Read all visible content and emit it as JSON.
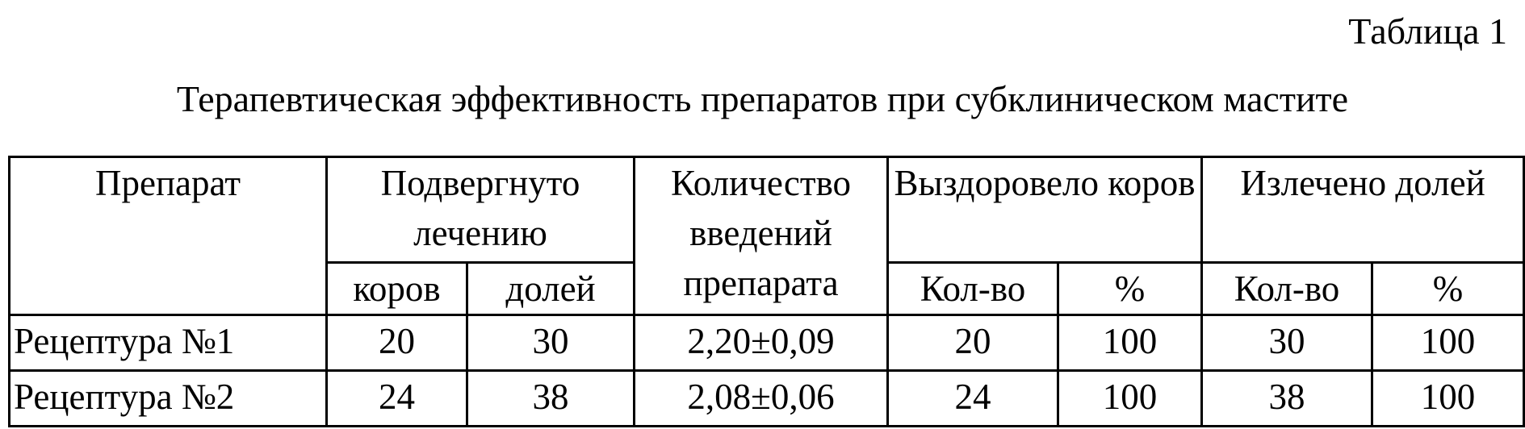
{
  "caption": "Таблица 1",
  "title": "Терапевтическая эффективность препаратов при субклиническом мастите",
  "table": {
    "headers": {
      "preparation": "Препарат",
      "treated": "Подвергнуто лечению",
      "injections": "Количество введений препарата",
      "recovered": "Выздоровело коров",
      "cured": "Излечено долей"
    },
    "subheaders": [
      "коров",
      "долей",
      "Кол-во",
      "%",
      "Кол-во",
      "%"
    ],
    "rows": [
      [
        "Рецептура №1",
        "20",
        "30",
        "2,20±0,09",
        "20",
        "100",
        "30",
        "100"
      ],
      [
        "Рецептура №2",
        "24",
        "38",
        "2,08±0,06",
        "24",
        "100",
        "38",
        "100"
      ]
    ]
  }
}
